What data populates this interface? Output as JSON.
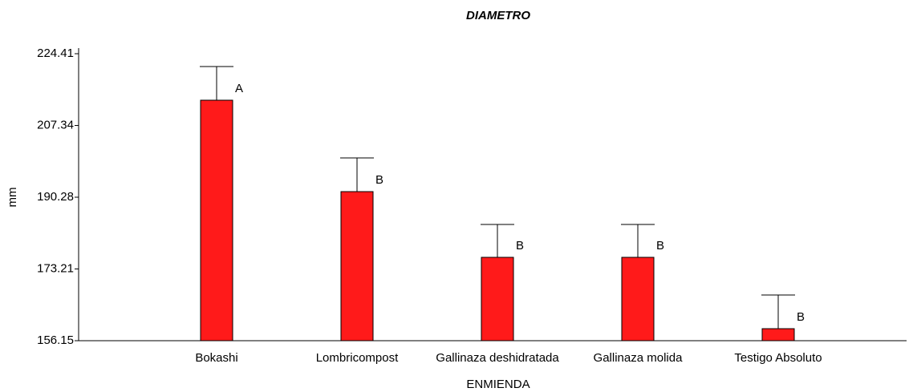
{
  "chart_data": {
    "type": "bar",
    "title": "DIAMETRO",
    "x_label": "ENMIENDA",
    "y_label": "mm",
    "categories": [
      "Bokashi",
      "Lombricompost",
      "Gallinaza deshidratada",
      "Gallinaza molida",
      "Testigo Absoluto"
    ],
    "values": [
      213.35,
      191.61,
      175.98,
      175.98,
      159.01
    ],
    "errors": [
      8.01,
      8.01,
      7.82,
      7.82,
      8.01
    ],
    "letters": [
      "A",
      "B",
      "B",
      "B",
      "B"
    ],
    "color": "#ff1a1a",
    "ylim": [
      156.15,
      224.41
    ],
    "yticks": [
      156.15,
      173.21,
      190.28,
      207.34,
      224.41
    ]
  }
}
